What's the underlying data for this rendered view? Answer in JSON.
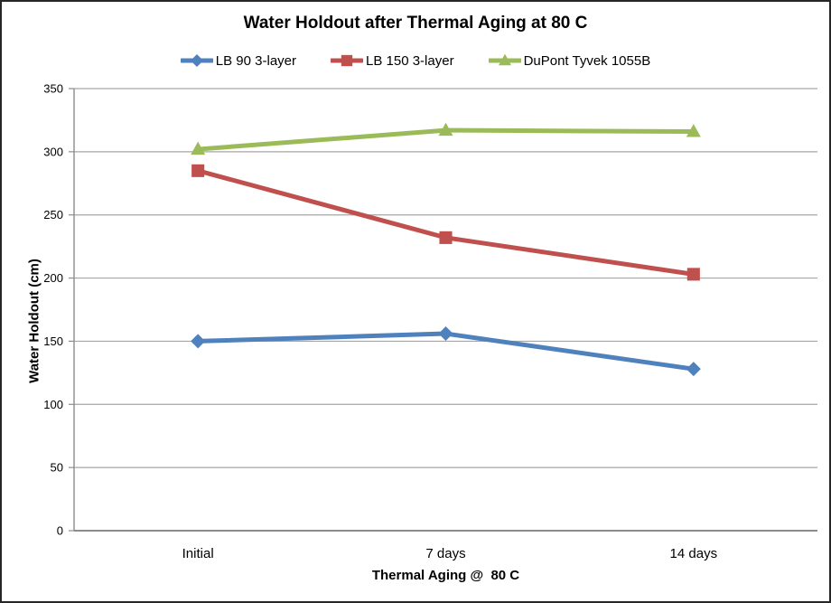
{
  "chart_data": {
    "type": "line",
    "title": "Water Holdout after Thermal Aging at 80 C",
    "xlabel": "Thermal Aging @  80 C",
    "ylabel": "Water Holdout (cm)",
    "categories": [
      "Initial",
      "7 days",
      "14 days"
    ],
    "series": [
      {
        "name": "LB 90 3-layer",
        "marker": "diamond",
        "color": "#4F81BD",
        "values": [
          150,
          156,
          128
        ]
      },
      {
        "name": "LB 150 3-layer",
        "marker": "square",
        "color": "#C0504D",
        "values": [
          285,
          232,
          203
        ]
      },
      {
        "name": "DuPont Tyvek 1055B",
        "marker": "triangle",
        "color": "#9BBB59",
        "values": [
          302,
          317,
          316
        ]
      }
    ],
    "ylim": [
      0,
      350
    ],
    "ytick_step": 50,
    "yticks": [
      350,
      300,
      250,
      200,
      150,
      100,
      50,
      0
    ],
    "grid": true,
    "legend_position": "top",
    "colors": {
      "gridline": "#A6A6A6",
      "axis_line": "#8C8C8C",
      "text": "#000000",
      "background": "#FFFFFF",
      "frame_border": "#262626"
    }
  }
}
